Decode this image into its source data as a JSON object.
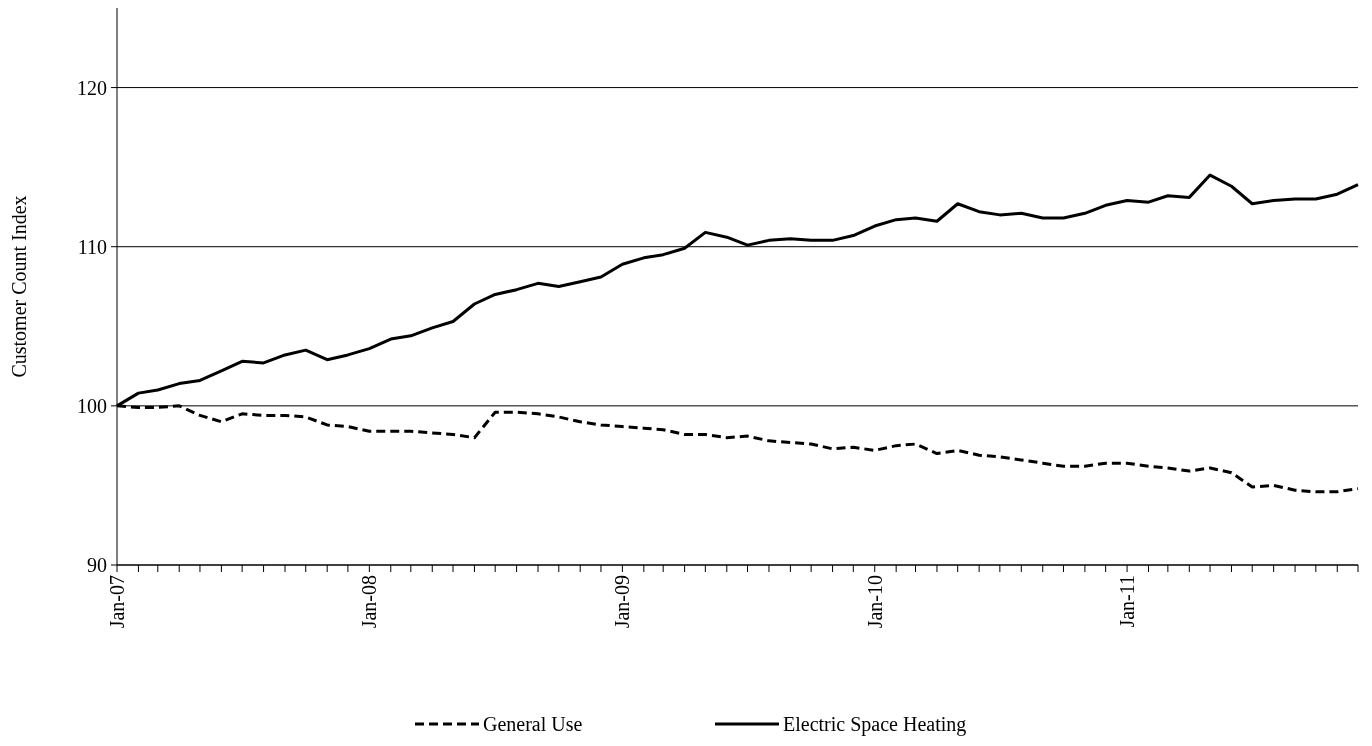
{
  "chart_data": {
    "type": "line",
    "ylabel": "Customer Count Index",
    "x": [
      "2007-01",
      "2007-02",
      "2007-03",
      "2007-04",
      "2007-05",
      "2007-06",
      "2007-07",
      "2007-08",
      "2007-09",
      "2007-10",
      "2007-11",
      "2007-12",
      "2008-01",
      "2008-02",
      "2008-03",
      "2008-04",
      "2008-05",
      "2008-06",
      "2008-07",
      "2008-08",
      "2008-09",
      "2008-10",
      "2008-11",
      "2008-12",
      "2009-01",
      "2009-02",
      "2009-03",
      "2009-04",
      "2009-05",
      "2009-06",
      "2009-07",
      "2009-08",
      "2009-09",
      "2009-10",
      "2009-11",
      "2009-12",
      "2010-01",
      "2010-02",
      "2010-03",
      "2010-04",
      "2010-05",
      "2010-06",
      "2010-07",
      "2010-08",
      "2010-09",
      "2010-10",
      "2010-11",
      "2010-12",
      "2011-01",
      "2011-02",
      "2011-03",
      "2011-04",
      "2011-05",
      "2011-06",
      "2011-07",
      "2011-08",
      "2011-09",
      "2011-10",
      "2011-11",
      "2011-12"
    ],
    "series": [
      {
        "name": "General Use",
        "color": "#000000",
        "line_style": "dashed",
        "values": [
          100,
          99.9,
          99.9,
          100.0,
          99.4,
          99.0,
          99.5,
          99.4,
          99.4,
          99.3,
          98.8,
          98.7,
          98.4,
          98.4,
          98.4,
          98.3,
          98.2,
          98.0,
          99.6,
          99.6,
          99.5,
          99.3,
          99.0,
          98.8,
          98.7,
          98.6,
          98.5,
          98.2,
          98.2,
          98.0,
          98.1,
          97.8,
          97.7,
          97.6,
          97.3,
          97.4,
          97.2,
          97.5,
          97.6,
          97.0,
          97.2,
          96.9,
          96.8,
          96.6,
          96.4,
          96.2,
          96.2,
          96.4,
          96.4,
          96.2,
          96.1,
          95.9,
          96.1,
          95.8,
          94.9,
          95.0,
          94.7,
          94.6,
          94.6,
          94.8
        ]
      },
      {
        "name": "Electric Space Heating",
        "color": "#000000",
        "line_style": "solid",
        "values": [
          100,
          100.8,
          101.0,
          101.4,
          101.6,
          102.2,
          102.8,
          102.7,
          103.2,
          103.5,
          102.9,
          103.2,
          103.6,
          104.2,
          104.4,
          104.9,
          105.3,
          106.4,
          107.0,
          107.3,
          107.7,
          107.5,
          107.8,
          108.1,
          108.9,
          109.3,
          109.5,
          109.9,
          110.9,
          110.6,
          110.1,
          110.4,
          110.5,
          110.4,
          110.4,
          110.7,
          111.3,
          111.7,
          111.8,
          111.6,
          112.7,
          112.2,
          112.0,
          112.1,
          111.8,
          111.8,
          112.1,
          112.6,
          112.9,
          112.8,
          113.2,
          113.1,
          114.5,
          113.8,
          112.7,
          112.9,
          113.0,
          113.0,
          113.3,
          113.9
        ]
      }
    ],
    "xlim": [
      "2007-01",
      "2011-12"
    ],
    "xticks": [
      {
        "value": "2007-01",
        "label": "Jan-07"
      },
      {
        "value": "2007-02",
        "label": null
      },
      {
        "value": "2007-03",
        "label": null
      },
      {
        "value": "2007-04",
        "label": null
      },
      {
        "value": "2007-05",
        "label": null
      },
      {
        "value": "2007-06",
        "label": null
      },
      {
        "value": "2007-07",
        "label": null
      },
      {
        "value": "2007-08",
        "label": null
      },
      {
        "value": "2007-09",
        "label": null
      },
      {
        "value": "2007-10",
        "label": null
      },
      {
        "value": "2007-11",
        "label": null
      },
      {
        "value": "2007-12",
        "label": null
      },
      {
        "value": "2008-01",
        "label": "Jan-08"
      },
      {
        "value": "2008-02",
        "label": null
      },
      {
        "value": "2008-03",
        "label": null
      },
      {
        "value": "2008-04",
        "label": null
      },
      {
        "value": "2008-05",
        "label": null
      },
      {
        "value": "2008-06",
        "label": null
      },
      {
        "value": "2008-07",
        "label": null
      },
      {
        "value": "2008-08",
        "label": null
      },
      {
        "value": "2008-09",
        "label": null
      },
      {
        "value": "2008-10",
        "label": null
      },
      {
        "value": "2008-11",
        "label": null
      },
      {
        "value": "2008-12",
        "label": null
      },
      {
        "value": "2009-01",
        "label": "Jan-09"
      },
      {
        "value": "2009-02",
        "label": null
      },
      {
        "value": "2009-03",
        "label": null
      },
      {
        "value": "2009-04",
        "label": null
      },
      {
        "value": "2009-05",
        "label": null
      },
      {
        "value": "2009-06",
        "label": null
      },
      {
        "value": "2009-07",
        "label": null
      },
      {
        "value": "2009-08",
        "label": null
      },
      {
        "value": "2009-09",
        "label": null
      },
      {
        "value": "2009-10",
        "label": null
      },
      {
        "value": "2009-11",
        "label": null
      },
      {
        "value": "2009-12",
        "label": null
      },
      {
        "value": "2010-01",
        "label": "Jan-10"
      },
      {
        "value": "2010-02",
        "label": null
      },
      {
        "value": "2010-03",
        "label": null
      },
      {
        "value": "2010-04",
        "label": null
      },
      {
        "value": "2010-05",
        "label": null
      },
      {
        "value": "2010-06",
        "label": null
      },
      {
        "value": "2010-07",
        "label": null
      },
      {
        "value": "2010-08",
        "label": null
      },
      {
        "value": "2010-09",
        "label": null
      },
      {
        "value": "2010-10",
        "label": null
      },
      {
        "value": "2010-11",
        "label": null
      },
      {
        "value": "2010-12",
        "label": null
      },
      {
        "value": "2011-01",
        "label": "Jan-11"
      },
      {
        "value": "2011-02",
        "label": null
      },
      {
        "value": "2011-03",
        "label": null
      },
      {
        "value": "2011-04",
        "label": null
      },
      {
        "value": "2011-05",
        "label": null
      },
      {
        "value": "2011-06",
        "label": null
      },
      {
        "value": "2011-07",
        "label": null
      },
      {
        "value": "2011-08",
        "label": null
      },
      {
        "value": "2011-09",
        "label": null
      },
      {
        "value": "2011-10",
        "label": null
      },
      {
        "value": "2011-11",
        "label": null
      },
      {
        "value": "2011-12",
        "label": null
      }
    ],
    "ylim": [
      90,
      125
    ],
    "yticks": [
      90,
      100,
      110,
      120
    ],
    "grid": "y",
    "legend": "bottom"
  }
}
